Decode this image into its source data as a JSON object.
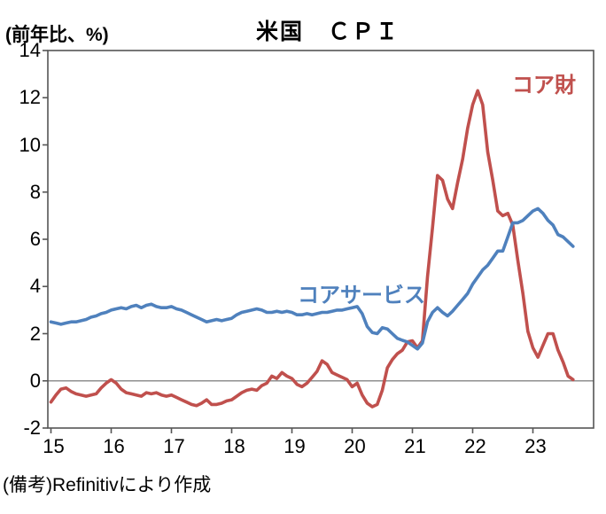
{
  "title": "米国　ＣＰＩ",
  "y_axis_unit": "(前年比、%)",
  "note": "(備考)Refinitivにより作成",
  "colors": {
    "core_goods": "#c0504d",
    "core_services": "#4f81bd",
    "axis": "#555555",
    "zero_line": "#8f8f8f",
    "text": "#000000"
  },
  "chart_data": {
    "type": "line",
    "title": "米国　ＣＰＩ",
    "ylabel": "(前年比、%)",
    "xlabel": "",
    "ylim": [
      -2,
      14
    ],
    "yticks": [
      14,
      12,
      10,
      8,
      6,
      4,
      2,
      0,
      -2
    ],
    "xticks": [
      "15",
      "16",
      "17",
      "18",
      "19",
      "20",
      "21",
      "22",
      "23"
    ],
    "x_start": "2015-01",
    "x_end": "2023-09",
    "frequency": "monthly",
    "grid": "zero-line-only",
    "legend_position": "inline-annotations",
    "series": [
      {
        "name": "コア財",
        "color": "#c0504d",
        "values": [
          -0.9,
          -0.6,
          -0.35,
          -0.3,
          -0.45,
          -0.55,
          -0.6,
          -0.65,
          -0.6,
          -0.55,
          -0.3,
          -0.1,
          0.05,
          -0.1,
          -0.35,
          -0.5,
          -0.55,
          -0.6,
          -0.65,
          -0.5,
          -0.55,
          -0.5,
          -0.6,
          -0.65,
          -0.6,
          -0.7,
          -0.8,
          -0.9,
          -1.0,
          -1.05,
          -0.95,
          -0.8,
          -1.0,
          -1.0,
          -0.95,
          -0.85,
          -0.8,
          -0.65,
          -0.5,
          -0.4,
          -0.35,
          -0.4,
          -0.2,
          -0.1,
          0.2,
          0.1,
          0.35,
          0.2,
          0.1,
          -0.15,
          -0.25,
          -0.1,
          0.15,
          0.4,
          0.85,
          0.7,
          0.35,
          0.25,
          0.15,
          0.05,
          -0.25,
          -0.1,
          -0.6,
          -0.95,
          -1.1,
          -1.0,
          -0.4,
          0.55,
          0.9,
          1.15,
          1.3,
          1.65,
          1.7,
          1.4,
          1.7,
          4.4,
          6.5,
          8.7,
          8.5,
          7.7,
          7.3,
          8.4,
          9.4,
          10.7,
          11.7,
          12.3,
          11.7,
          9.7,
          8.5,
          7.2,
          7.0,
          7.1,
          6.6,
          5.1,
          3.7,
          2.1,
          1.4,
          1.0,
          1.5,
          2.0,
          2.0,
          1.3,
          0.8,
          0.2,
          0.05
        ]
      },
      {
        "name": "コアサービス",
        "color": "#4f81bd",
        "values": [
          2.5,
          2.45,
          2.4,
          2.45,
          2.5,
          2.5,
          2.55,
          2.6,
          2.7,
          2.75,
          2.85,
          2.9,
          3.0,
          3.05,
          3.1,
          3.05,
          3.15,
          3.2,
          3.1,
          3.2,
          3.25,
          3.15,
          3.1,
          3.1,
          3.15,
          3.05,
          3.0,
          2.9,
          2.8,
          2.7,
          2.6,
          2.5,
          2.55,
          2.6,
          2.55,
          2.6,
          2.65,
          2.8,
          2.9,
          2.95,
          3.0,
          3.05,
          3.0,
          2.9,
          2.9,
          2.95,
          2.9,
          2.95,
          2.9,
          2.8,
          2.8,
          2.85,
          2.8,
          2.85,
          2.9,
          2.9,
          2.95,
          3.0,
          3.0,
          3.05,
          3.1,
          3.15,
          2.85,
          2.3,
          2.05,
          2.0,
          2.25,
          2.2,
          2.0,
          1.8,
          1.72,
          1.65,
          1.5,
          1.35,
          1.6,
          2.5,
          2.9,
          3.1,
          2.9,
          2.75,
          2.95,
          3.2,
          3.45,
          3.7,
          4.1,
          4.4,
          4.7,
          4.9,
          5.2,
          5.5,
          5.5,
          6.1,
          6.7,
          6.7,
          6.8,
          7.0,
          7.2,
          7.3,
          7.1,
          6.8,
          6.6,
          6.2,
          6.1,
          5.9,
          5.7
        ]
      }
    ]
  }
}
